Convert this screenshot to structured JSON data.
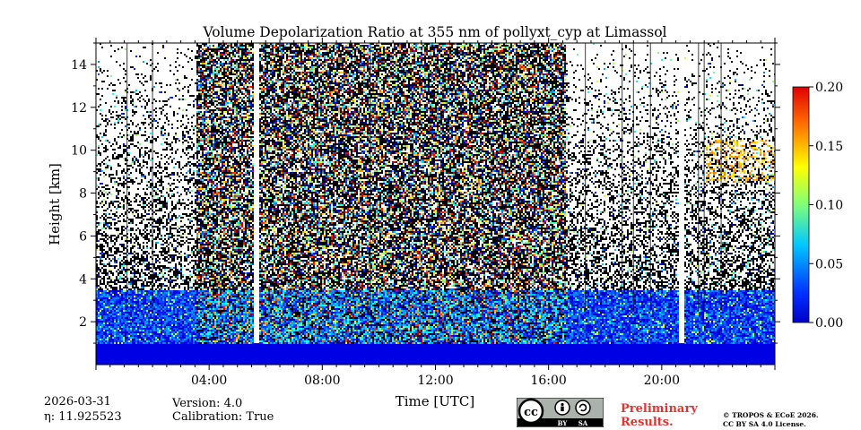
{
  "chart_data": {
    "type": "heatmap",
    "title": "Volume Depolarization Ratio at 355 nm of pollyxt_cyp at Limassol",
    "xlabel": "Time [UTC]",
    "ylabel": "Height [km]",
    "x_range_hours": [
      0.0,
      24.0
    ],
    "ylim_km": [
      0.0,
      15.0
    ],
    "x_ticks": [
      {
        "hour": 4,
        "label": "04:00"
      },
      {
        "hour": 8,
        "label": "08:00"
      },
      {
        "hour": 12,
        "label": "12:00"
      },
      {
        "hour": 16,
        "label": "16:00"
      },
      {
        "hour": 20,
        "label": "20:00"
      }
    ],
    "y_ticks": [
      {
        "km": 2,
        "label": "2"
      },
      {
        "km": 4,
        "label": "4"
      },
      {
        "km": 6,
        "label": "6"
      },
      {
        "km": 8,
        "label": "8"
      },
      {
        "km": 10,
        "label": "10"
      },
      {
        "km": 12,
        "label": "12"
      },
      {
        "km": 14,
        "label": "14"
      }
    ],
    "colorbar": {
      "min": 0.0,
      "max": 0.2,
      "colormap": "jet",
      "ticks": [
        {
          "value": 0.0,
          "label": "0.00"
        },
        {
          "value": 0.05,
          "label": "0.05"
        },
        {
          "value": 0.1,
          "label": "0.10"
        },
        {
          "value": 0.15,
          "label": "0.15"
        },
        {
          "value": 0.2,
          "label": "0.20"
        }
      ]
    },
    "noisy_daytime_hours": [
      3.5,
      16.6
    ],
    "data_gaps_hours": [
      [
        5.55,
        5.75
      ],
      [
        20.55,
        20.75
      ]
    ],
    "boundary_layer_top_km": 3.5,
    "near_surface_depol": 0.02,
    "elevated_aerosol_layer": {
      "start_hour": 21.5,
      "end_hour": 24.0,
      "bottom_km": 8.5,
      "top_km": 10.5,
      "depol": 0.14
    }
  },
  "meta": {
    "date": "2026-03-31",
    "eta_label": "η: 11.925523",
    "version": "Version: 4.0",
    "calibration": "Calibration: True",
    "preliminary_line1": "Preliminary",
    "preliminary_line2": "Results.",
    "copyright_line1": "© TROPOS & ECoE 2026.",
    "copyright_line2": "CC BY SA 4.0 License.",
    "license_badge": {
      "cc": "cc",
      "by": "BY",
      "sa": "SA"
    }
  }
}
